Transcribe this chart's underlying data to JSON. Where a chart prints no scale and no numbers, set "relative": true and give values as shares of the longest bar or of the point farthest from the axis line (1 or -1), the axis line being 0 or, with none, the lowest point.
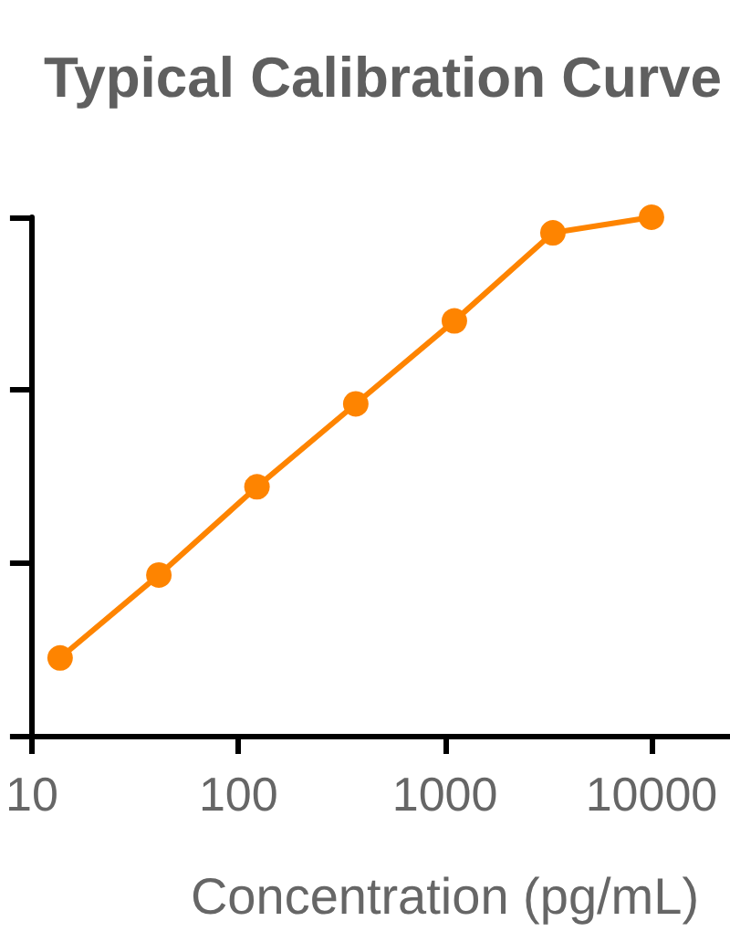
{
  "chart_data": {
    "type": "line",
    "title": "Typical Calibration Curve",
    "xlabel": "Concentration (pg/mL)",
    "x": [
      13.7,
      41.2,
      123,
      370,
      1111,
      3333,
      10000
    ],
    "series": [
      {
        "color": "#fe8400",
        "values": [
          0.15,
          0.31,
          0.48,
          0.64,
          0.8,
          0.97,
          1
        ]
      }
    ],
    "relative": true,
    "log": "x",
    "xlim": [
      10,
      24000
    ],
    "xticks": [
      10,
      100,
      1000,
      10000
    ],
    "marker": "circle",
    "line_style": "solid"
  }
}
